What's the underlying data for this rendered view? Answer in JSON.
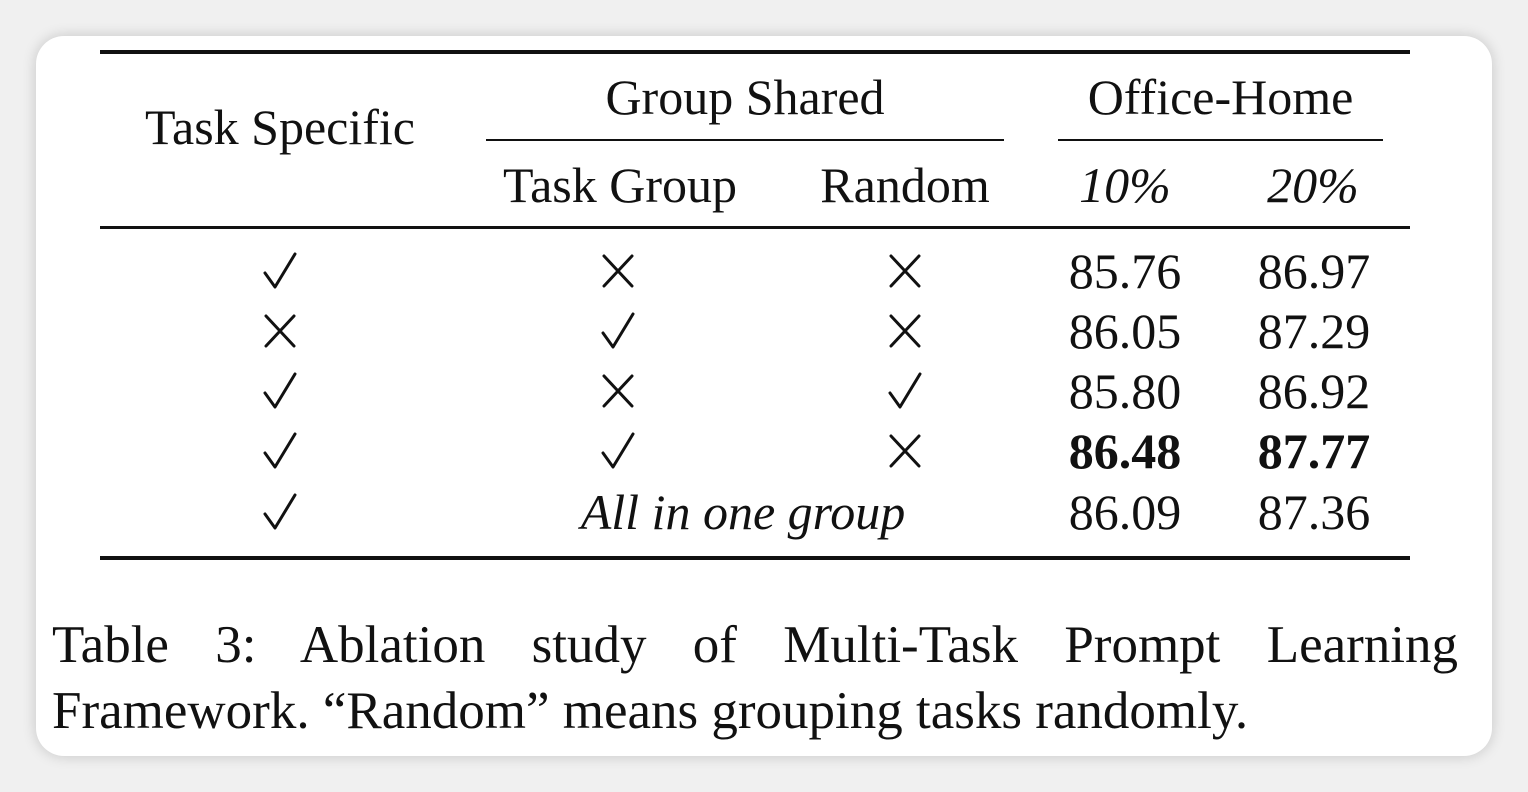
{
  "table": {
    "header": {
      "task_specific": "Task Specific",
      "group_shared": "Group Shared",
      "task_group": "Task Group",
      "random": "Random",
      "dataset": "Office-Home",
      "p10": "10%",
      "p20": "20%"
    },
    "check_icon": "checkmark-icon",
    "cross_icon": "cross-icon",
    "rows": [
      {
        "task_specific": "check",
        "task_group": "cross",
        "random": "cross",
        "p10": "85.76",
        "p20": "86.97",
        "bold": false
      },
      {
        "task_specific": "cross",
        "task_group": "check",
        "random": "cross",
        "p10": "86.05",
        "p20": "87.29",
        "bold": false
      },
      {
        "task_specific": "check",
        "task_group": "cross",
        "random": "check",
        "p10": "85.80",
        "p20": "86.92",
        "bold": false
      },
      {
        "task_specific": "check",
        "task_group": "check",
        "random": "cross",
        "p10": "86.48",
        "p20": "87.77",
        "bold": true
      },
      {
        "task_specific": "check",
        "merged_label": "All in one group",
        "p10": "86.09",
        "p20": "87.36",
        "bold": false
      }
    ]
  },
  "caption": "Table 3: Ablation study of Multi-Task Prompt Learning Framework. “Random” means grouping tasks randomly."
}
